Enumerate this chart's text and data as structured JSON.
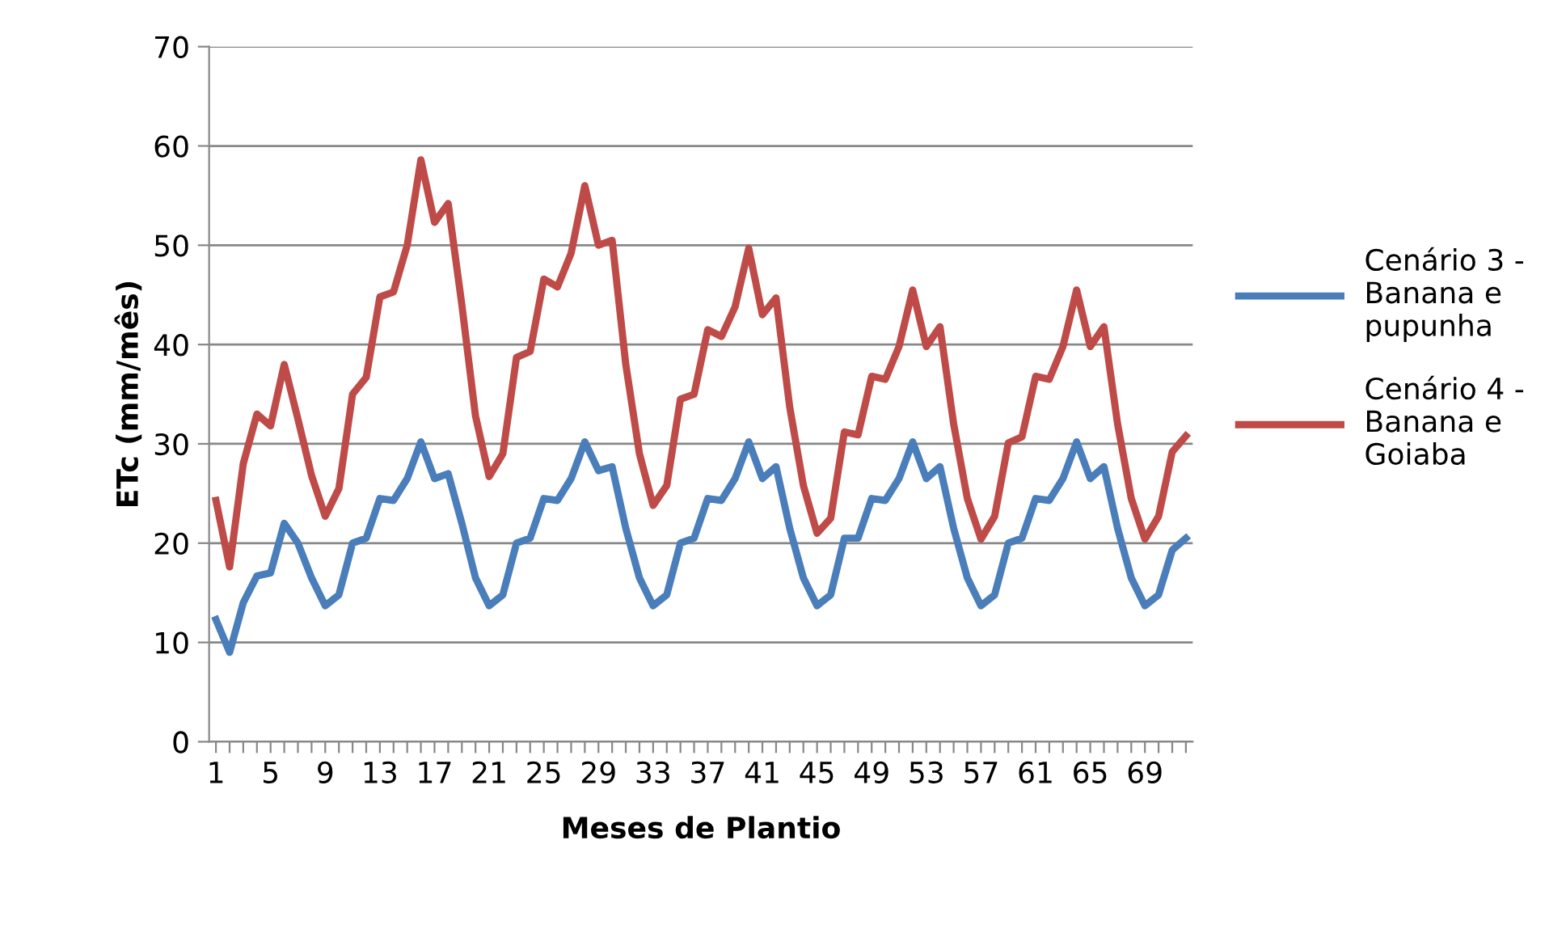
{
  "chart_data": {
    "type": "line",
    "xlabel": "Meses de Plantio",
    "ylabel": "ETc (mm/mês)",
    "categories": [
      "1",
      null,
      null,
      null,
      "5",
      null,
      null,
      null,
      "9",
      null,
      null,
      null,
      "13",
      null,
      null,
      null,
      "17",
      null,
      null,
      null,
      "21",
      null,
      null,
      null,
      "25",
      null,
      null,
      null,
      "29",
      null,
      null,
      null,
      "33",
      null,
      null,
      null,
      "37",
      null,
      null,
      null,
      "41",
      null,
      null,
      null,
      "45",
      null,
      null,
      null,
      "49",
      null,
      null,
      null,
      "53",
      null,
      null,
      null,
      "57",
      null,
      null,
      null,
      "61",
      null,
      null,
      null,
      "65",
      null,
      null,
      null,
      "69",
      null,
      null,
      null
    ],
    "ylim": [
      0,
      70
    ],
    "yticks": [
      0,
      10,
      20,
      30,
      40,
      50,
      60,
      70
    ],
    "grid": "y",
    "legend": "right",
    "marker": "none",
    "line_style": "solid",
    "series": [
      {
        "name": "Cenário 3 - Banana e pupunha",
        "color": "#4a7ebb",
        "values": [
          12.3,
          9,
          14,
          16.7,
          17,
          22,
          20,
          16.5,
          13.7,
          14.8,
          20,
          20.5,
          24.5,
          24.3,
          26.5,
          30.2,
          26.5,
          27,
          22,
          16.5,
          13.7,
          14.8,
          20,
          20.5,
          24.5,
          24.3,
          26.5,
          30.2,
          27.3,
          27.7,
          21.5,
          16.5,
          13.7,
          14.8,
          20,
          20.5,
          24.5,
          24.3,
          26.5,
          30.2,
          26.5,
          27.7,
          21.5,
          16.5,
          13.7,
          14.8,
          20.5,
          20.5,
          24.5,
          24.3,
          26.5,
          30.2,
          26.5,
          27.7,
          21.5,
          16.5,
          13.7,
          14.8,
          20,
          20.5,
          24.5,
          24.3,
          26.5,
          30.2,
          26.5,
          27.7,
          21.5,
          16.5,
          13.7,
          14.8,
          19.3,
          20.5
        ]
      },
      {
        "name": "Cenário 4 - Banana e Goiaba",
        "color": "#be4b48",
        "values": [
          24.3,
          17.6,
          28,
          33,
          31.8,
          38,
          32.5,
          26.8,
          22.7,
          25.5,
          35,
          36.7,
          44.8,
          45.3,
          50,
          58.6,
          52.3,
          54.2,
          44,
          32.8,
          26.7,
          29,
          38.7,
          39.3,
          46.6,
          45.8,
          49.2,
          56,
          50,
          50.5,
          38,
          29,
          23.8,
          25.8,
          34.5,
          35,
          41.5,
          40.8,
          43.8,
          49.7,
          43,
          44.7,
          33.7,
          25.8,
          21,
          22.5,
          31.2,
          30.9,
          36.8,
          36.5,
          39.8,
          45.5,
          39.8,
          41.8,
          32,
          24.5,
          20.4,
          22.7,
          30.1,
          30.7,
          36.8,
          36.5,
          39.8,
          45.5,
          39.8,
          41.8,
          32,
          24.5,
          20.4,
          22.7,
          29.2,
          30.8
        ]
      }
    ]
  }
}
